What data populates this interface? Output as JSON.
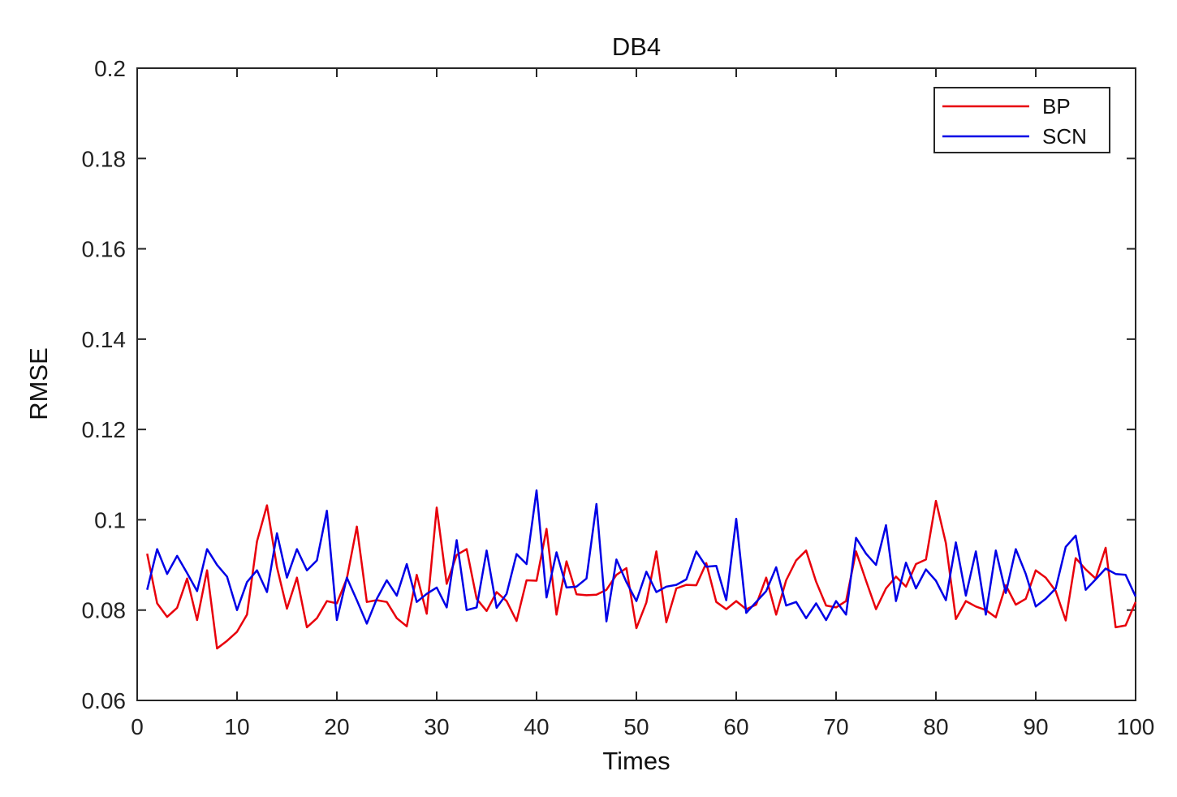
{
  "chart_data": {
    "type": "line",
    "title": "DB4",
    "xlabel": "Times",
    "ylabel": "RMSE",
    "xlim": [
      0,
      100
    ],
    "ylim": [
      0.06,
      0.2
    ],
    "xticks": [
      "0",
      "10",
      "20",
      "30",
      "40",
      "50",
      "60",
      "70",
      "80",
      "90",
      "100"
    ],
    "yticks": [
      "0.06",
      "0.08",
      "0.1",
      "0.12",
      "0.14",
      "0.16",
      "0.18",
      "0.2"
    ],
    "grid": false,
    "legend_position": "top-right",
    "x": [
      1,
      2,
      3,
      4,
      5,
      6,
      7,
      8,
      9,
      10,
      11,
      12,
      13,
      14,
      15,
      16,
      17,
      18,
      19,
      20,
      21,
      22,
      23,
      24,
      25,
      26,
      27,
      28,
      29,
      30,
      31,
      32,
      33,
      34,
      35,
      36,
      37,
      38,
      39,
      40,
      41,
      42,
      43,
      44,
      45,
      46,
      47,
      48,
      49,
      50,
      51,
      52,
      53,
      54,
      55,
      56,
      57,
      58,
      59,
      60,
      61,
      62,
      63,
      64,
      65,
      66,
      67,
      68,
      69,
      70,
      71,
      72,
      73,
      74,
      75,
      76,
      77,
      78,
      79,
      80,
      81,
      82,
      83,
      84,
      85,
      86,
      87,
      88,
      89,
      90,
      91,
      92,
      93,
      94,
      95,
      96,
      97,
      98,
      99,
      100
    ],
    "series": [
      {
        "name": "BP",
        "color": "#e8000b",
        "values": [
          0.0925,
          0.0815,
          0.0785,
          0.0805,
          0.087,
          0.0778,
          0.0888,
          0.0715,
          0.0732,
          0.0752,
          0.079,
          0.0952,
          0.1032,
          0.0895,
          0.0803,
          0.0872,
          0.0762,
          0.0782,
          0.082,
          0.0815,
          0.087,
          0.0985,
          0.0818,
          0.0822,
          0.0818,
          0.0782,
          0.0764,
          0.0878,
          0.0792,
          0.1027,
          0.0858,
          0.0922,
          0.0935,
          0.0825,
          0.0798,
          0.084,
          0.082,
          0.0776,
          0.0866,
          0.0865,
          0.098,
          0.079,
          0.0908,
          0.0835,
          0.0833,
          0.0834,
          0.0845,
          0.0878,
          0.0893,
          0.076,
          0.0817,
          0.093,
          0.0773,
          0.0848,
          0.0856,
          0.0855,
          0.0904,
          0.0818,
          0.0802,
          0.082,
          0.0802,
          0.0812,
          0.0872,
          0.079,
          0.0866,
          0.091,
          0.0932,
          0.0863,
          0.081,
          0.0806,
          0.082,
          0.093,
          0.0865,
          0.0802,
          0.0848,
          0.0874,
          0.0852,
          0.0902,
          0.0912,
          0.1042,
          0.0948,
          0.078,
          0.082,
          0.0808,
          0.08,
          0.0784,
          0.0855,
          0.0812,
          0.0825,
          0.0888,
          0.0872,
          0.0842,
          0.0777,
          0.0915,
          0.089,
          0.087,
          0.0938,
          0.0762,
          0.0766,
          0.0818
        ]
      },
      {
        "name": "SCN",
        "color": "#0000e6",
        "values": [
          0.0845,
          0.0935,
          0.088,
          0.092,
          0.0882,
          0.0842,
          0.0935,
          0.09,
          0.0874,
          0.08,
          0.0862,
          0.0888,
          0.084,
          0.097,
          0.0872,
          0.0935,
          0.0888,
          0.091,
          0.102,
          0.0778,
          0.0872,
          0.0822,
          0.077,
          0.0825,
          0.0866,
          0.0832,
          0.0902,
          0.0818,
          0.0836,
          0.085,
          0.0806,
          0.0955,
          0.08,
          0.0806,
          0.0932,
          0.0805,
          0.0836,
          0.0924,
          0.0902,
          0.1065,
          0.0828,
          0.0928,
          0.085,
          0.0852,
          0.087,
          0.1035,
          0.0775,
          0.0912,
          0.0862,
          0.082,
          0.0885,
          0.084,
          0.0852,
          0.0856,
          0.0868,
          0.093,
          0.0896,
          0.0898,
          0.0822,
          0.1002,
          0.0794,
          0.0818,
          0.0842,
          0.0895,
          0.081,
          0.0818,
          0.0782,
          0.0815,
          0.0778,
          0.082,
          0.079,
          0.096,
          0.0925,
          0.09,
          0.0988,
          0.082,
          0.0905,
          0.0848,
          0.089,
          0.0865,
          0.0822,
          0.095,
          0.0832,
          0.093,
          0.079,
          0.0932,
          0.0838,
          0.0935,
          0.088,
          0.0808,
          0.0825,
          0.0848,
          0.094,
          0.0965,
          0.0845,
          0.0868,
          0.0892,
          0.088,
          0.0878,
          0.083
        ]
      }
    ]
  }
}
